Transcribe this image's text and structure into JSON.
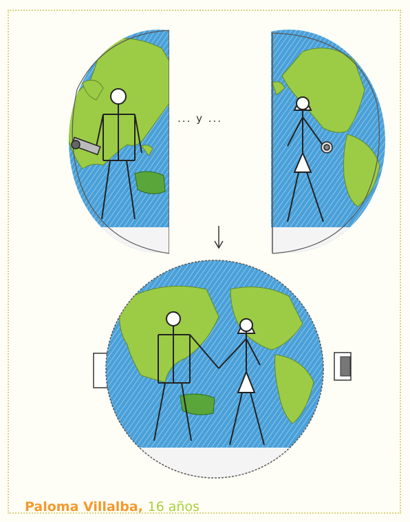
{
  "drawing": {
    "connector_text": "... y ...",
    "signature": {
      "name": "Paloma Villalba,",
      "age": "16 años"
    }
  },
  "colors": {
    "ocean": "#4aa0d8",
    "land": "#9ccc45",
    "name": "#f29a2e",
    "age": "#a9cf3a",
    "frame": "#d9d27a"
  }
}
